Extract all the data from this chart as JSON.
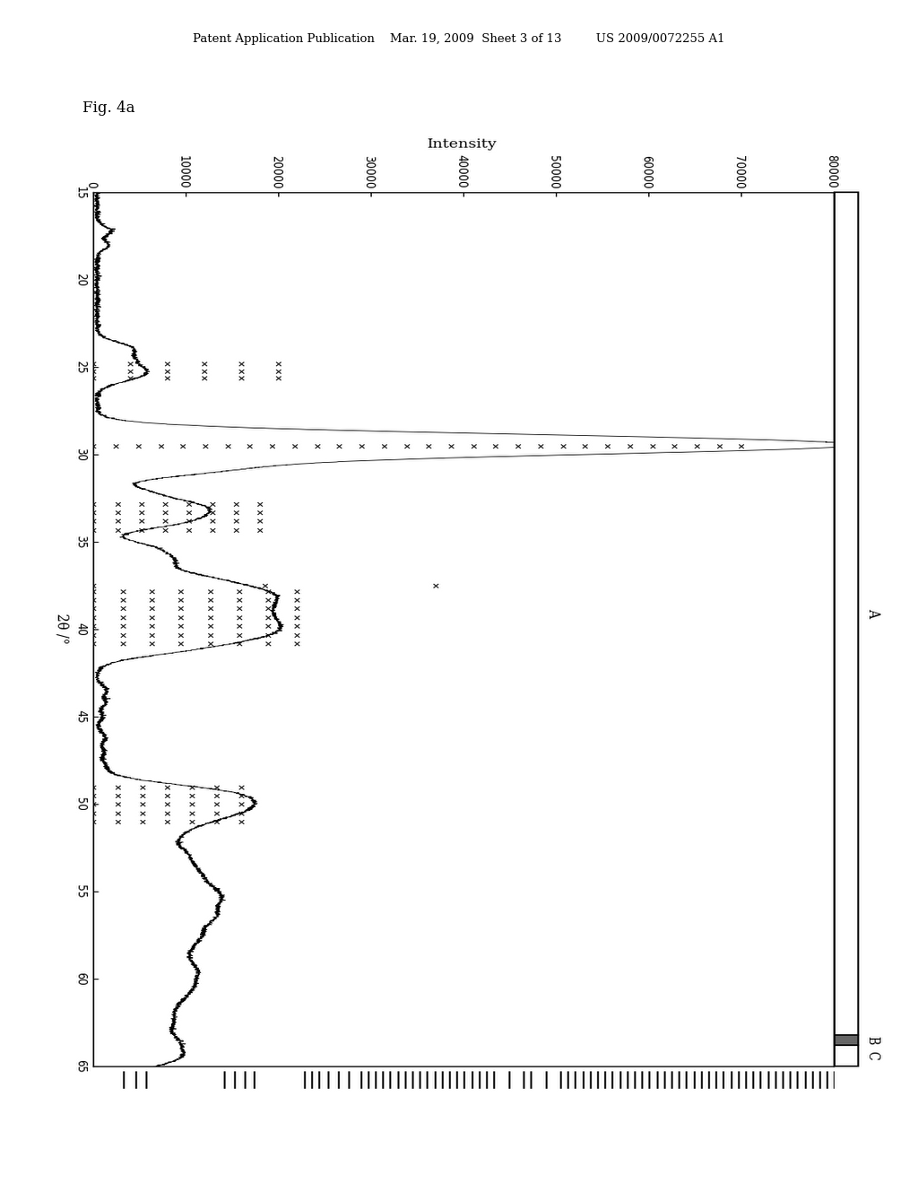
{
  "header_text": "Patent Application Publication    Mar. 19, 2009  Sheet 3 of 13         US 2009/0072255 A1",
  "fig_label": "Fig. 4a",
  "xlabel": "2θ /°",
  "ylabel": "Intensity",
  "theta_min": 15,
  "theta_max": 65,
  "intensity_min": 0,
  "intensity_max": 80000,
  "theta_ticks": [
    15,
    20,
    25,
    30,
    35,
    40,
    45,
    50,
    55,
    60,
    65
  ],
  "intensity_ticks": [
    0,
    10000,
    20000,
    30000,
    40000,
    50000,
    60000,
    70000,
    80000
  ],
  "region_labels": [
    "A",
    "B",
    "C"
  ],
  "background_color": "#ffffff",
  "text_color": "#000000",
  "b_marks": [
    17.0,
    17.8,
    18.5,
    23.8,
    24.5,
    25.2,
    25.8,
    29.2,
    29.7,
    30.2,
    30.8,
    31.5,
    32.2,
    33.0,
    33.5,
    34.0,
    34.5,
    35.0,
    35.5,
    36.0,
    36.5,
    37.0,
    37.5,
    38.0,
    38.5,
    39.0,
    39.5,
    40.0,
    40.5,
    41.0,
    41.5,
    42.0,
    43.0,
    44.0,
    44.5,
    45.5,
    46.5,
    47.0,
    47.5,
    48.0,
    48.5,
    49.0,
    49.5,
    50.0,
    50.5,
    51.0,
    51.5,
    52.0,
    52.5,
    53.0,
    53.5,
    54.0,
    54.5,
    55.0,
    55.5,
    56.0,
    56.5,
    57.0,
    57.5,
    58.0,
    58.5,
    59.0,
    59.5,
    60.0,
    60.5,
    61.0,
    61.5,
    62.0,
    62.5,
    63.0,
    63.5,
    64.0,
    64.5,
    65.0
  ]
}
